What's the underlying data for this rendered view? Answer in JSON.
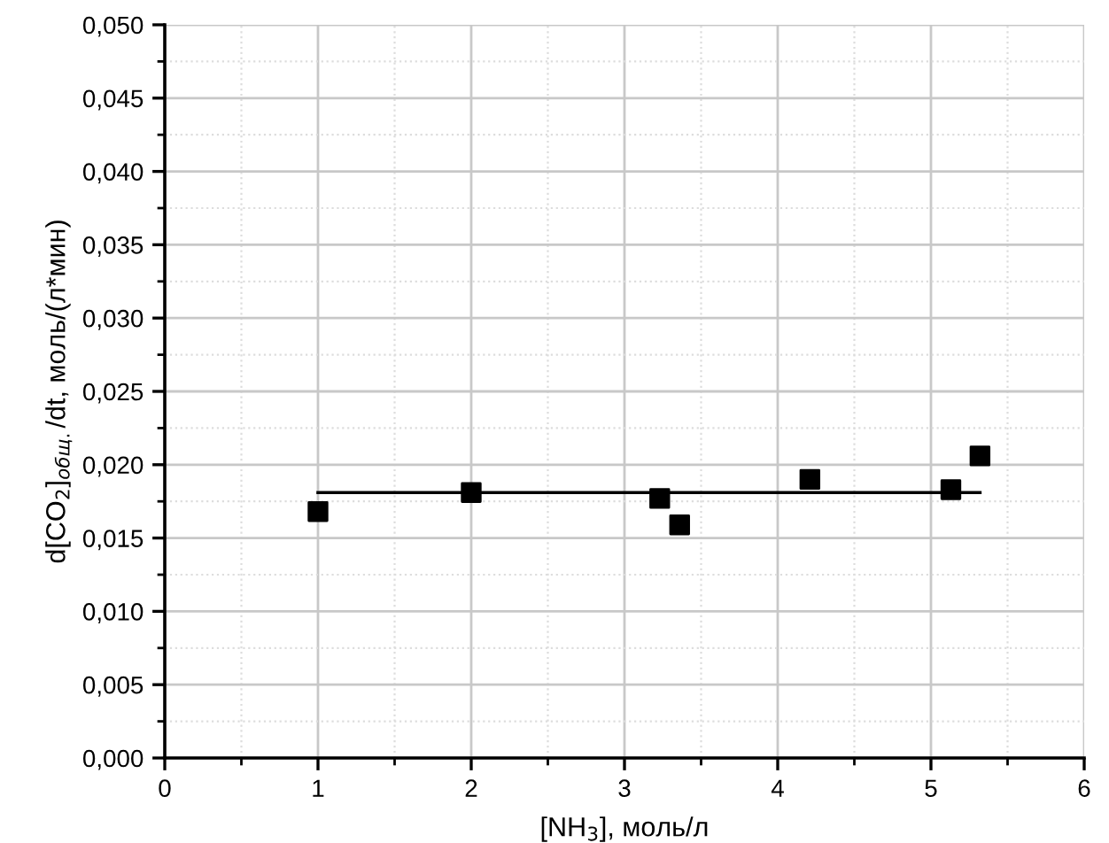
{
  "chart_data": {
    "type": "scatter",
    "xlabel": "[NH$_{3}$], моль/л",
    "ylabel": "d[CO$_{2}$]$_{общ.}$/dt, моль/(л*мин)",
    "series": [
      {
        "color": "#000000",
        "marker": "square",
        "x": [
          1,
          2,
          3.23,
          3.36,
          4.21,
          5.13,
          5.32
        ],
        "values": [
          0.0168,
          0.0181,
          0.0177,
          0.0159,
          0.019,
          0.0183,
          0.0206
        ]
      },
      {
        "type": "line",
        "color": "#000000",
        "marker": "none",
        "line_style": "solid",
        "x": [
          1,
          5.32
        ],
        "values": [
          0.0181,
          0.0181
        ]
      }
    ],
    "xlim": [
      0,
      6
    ],
    "xticks": [
      0,
      1,
      2,
      3,
      4,
      5,
      6
    ],
    "ylim": [
      0,
      0.05
    ],
    "yticks": [
      {
        "value": 0,
        "label": "0,000"
      },
      {
        "value": 0.005,
        "label": "0,005"
      },
      {
        "value": 0.01,
        "label": "0,010"
      },
      {
        "value": 0.015,
        "label": "0,015"
      },
      {
        "value": 0.02,
        "label": "0,020"
      },
      {
        "value": 0.025,
        "label": "0,025"
      },
      {
        "value": 0.03,
        "label": "0,030"
      },
      {
        "value": 0.035,
        "label": "0,035"
      },
      {
        "value": 0.04,
        "label": "0,040"
      },
      {
        "value": 0.045,
        "label": "0,045"
      },
      {
        "value": 0.05,
        "label": "0,050"
      }
    ],
    "grid": true
  }
}
